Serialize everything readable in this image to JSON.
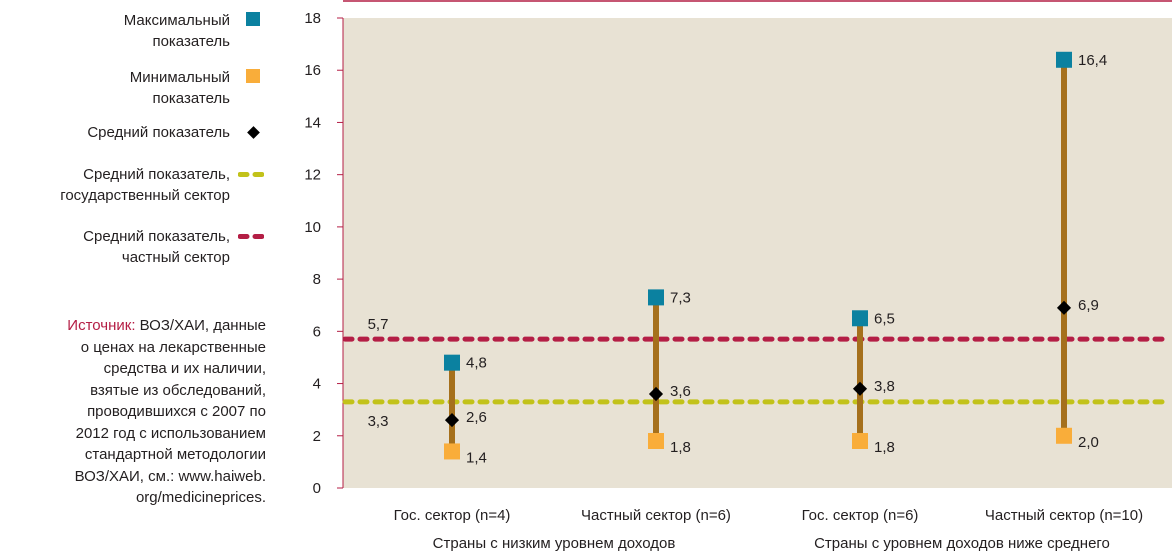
{
  "legend": {
    "max": {
      "label": "Максимальный\nпоказатель",
      "color": "#0b81a0"
    },
    "min": {
      "label": "Минимальный\nпоказатель",
      "color": "#f9ad3a"
    },
    "mean": {
      "label": "Средний показатель",
      "color": "#000000"
    },
    "public_avg": {
      "label": "Средний показатель,\nгосударственный сектор",
      "color": "#c2c21a"
    },
    "private_avg": {
      "label": "Средний показатель,\nчастный сектор",
      "color": "#b41e45"
    }
  },
  "source": {
    "label": "Источник:",
    "text": "ВОЗ/ХАИ, данные\nо ценах на лекарственные\nсредства и их наличии,\nвзятые из обследований,\nпроводившихся с 2007 по\n2012 год с использованием\nстандартной методологии\nВОЗ/ХАИ, см.: www.haiweb.\norg/medicineprices."
  },
  "chart_data": {
    "type": "range",
    "ylim": [
      0,
      18
    ],
    "yticks": [
      0,
      2,
      4,
      6,
      8,
      10,
      12,
      14,
      16,
      18
    ],
    "categories": [
      "Гос. сектор (n=4)",
      "Частный сектор (n=6)",
      "Гос. сектор (n=6)",
      "Частный сектор (n=10)"
    ],
    "groups": [
      "Страны с низким уровнем доходов",
      "Страны с уровнем доходов ниже среднего"
    ],
    "max": [
      4.8,
      7.3,
      6.5,
      16.4
    ],
    "min": [
      1.4,
      1.8,
      1.8,
      2.0
    ],
    "mean": [
      2.6,
      3.6,
      3.8,
      6.9
    ],
    "max_labels": [
      "4,8",
      "7,3",
      "6,5",
      "16,4"
    ],
    "min_labels": [
      "1,4",
      "1,8",
      "1,8",
      "2,0"
    ],
    "mean_labels": [
      "2,6",
      "3,6",
      "3,8",
      "6,9"
    ],
    "reference_lines": [
      {
        "series": "private_avg",
        "value": 5.7,
        "label": "5,7",
        "color": "#b41e45"
      },
      {
        "series": "public_avg",
        "value": 3.3,
        "label": "3,3",
        "color": "#c2c21a"
      }
    ],
    "colors": {
      "plot_bg": "#e8e2d4",
      "range_bar": "#a5701c",
      "top_line": "#b41e45"
    }
  }
}
